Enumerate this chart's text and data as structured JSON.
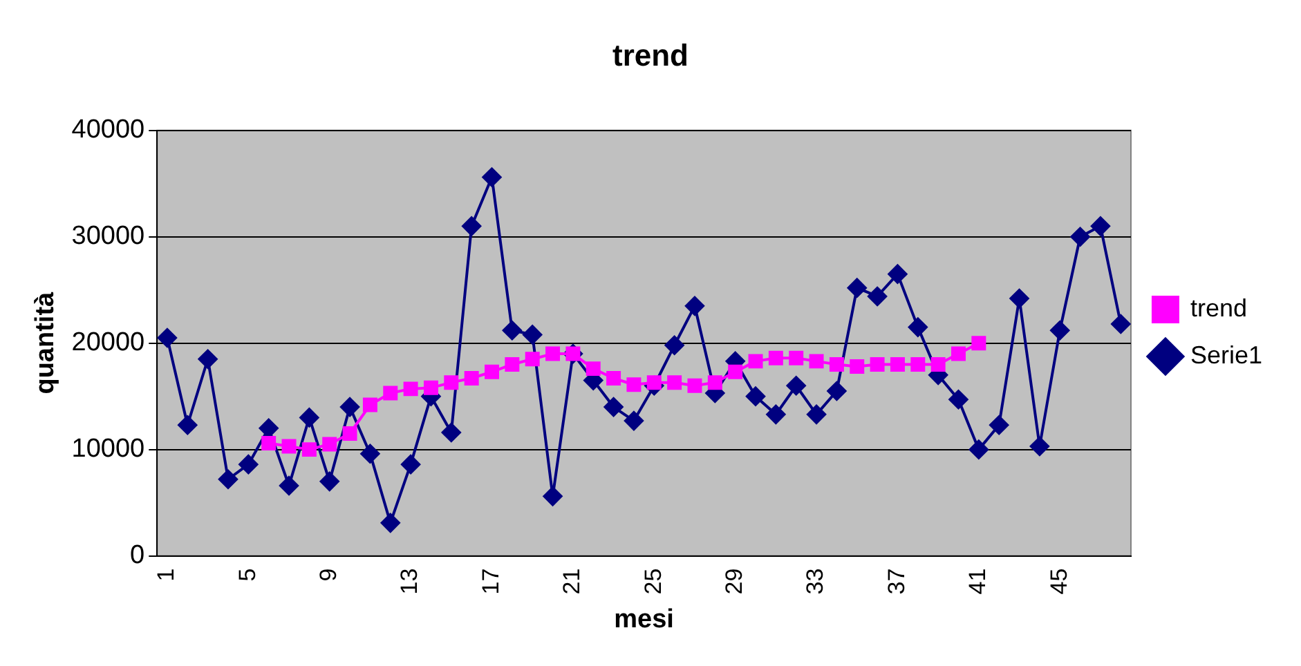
{
  "chart_data": {
    "type": "line",
    "title": "trend",
    "xlabel": "mesi",
    "ylabel": "quantità",
    "categories": [
      "1",
      null,
      null,
      null,
      "5",
      null,
      null,
      null,
      "9",
      null,
      null,
      null,
      "13",
      null,
      null,
      null,
      "17",
      null,
      null,
      null,
      "21",
      null,
      null,
      null,
      "25",
      null,
      null,
      null,
      "29",
      null,
      null,
      null,
      "33",
      null,
      null,
      null,
      "37",
      null,
      null,
      null,
      "41",
      null,
      null,
      null,
      "45",
      null,
      null,
      null
    ],
    "series": [
      {
        "name": "Serie1",
        "color": "#000080",
        "marker": "diamond",
        "values": [
          20500,
          12300,
          18500,
          7200,
          8600,
          12000,
          6600,
          13000,
          7000,
          14000,
          9600,
          3100,
          8600,
          15000,
          11600,
          31000,
          35600,
          21200,
          20800,
          5600,
          19000,
          16500,
          14000,
          12700,
          16000,
          19800,
          23500,
          15300,
          18300,
          15000,
          13300,
          16000,
          13300,
          15500,
          25200,
          24400,
          26500,
          21500,
          17000,
          14700,
          10000,
          12300,
          24200,
          10300,
          21200,
          30000,
          31000,
          21800
        ]
      },
      {
        "name": "trend",
        "color": "#ff00ff",
        "marker": "square",
        "values": [
          null,
          null,
          null,
          null,
          null,
          10600,
          10300,
          10000,
          10500,
          11500,
          14200,
          15300,
          15700,
          15800,
          16300,
          16700,
          17300,
          18000,
          18500,
          19000,
          19000,
          17600,
          16700,
          16100,
          16300,
          16300,
          16000,
          16300,
          17300,
          18300,
          18600,
          18600,
          18300,
          18000,
          17800,
          18000,
          18000,
          18000,
          18000,
          19000,
          20000,
          null,
          null,
          null,
          null,
          null,
          null,
          null
        ]
      }
    ],
    "ylim": [
      0,
      40000
    ],
    "yticks": [
      0,
      10000,
      20000,
      30000,
      40000
    ],
    "grid": "y",
    "legend": "right"
  }
}
